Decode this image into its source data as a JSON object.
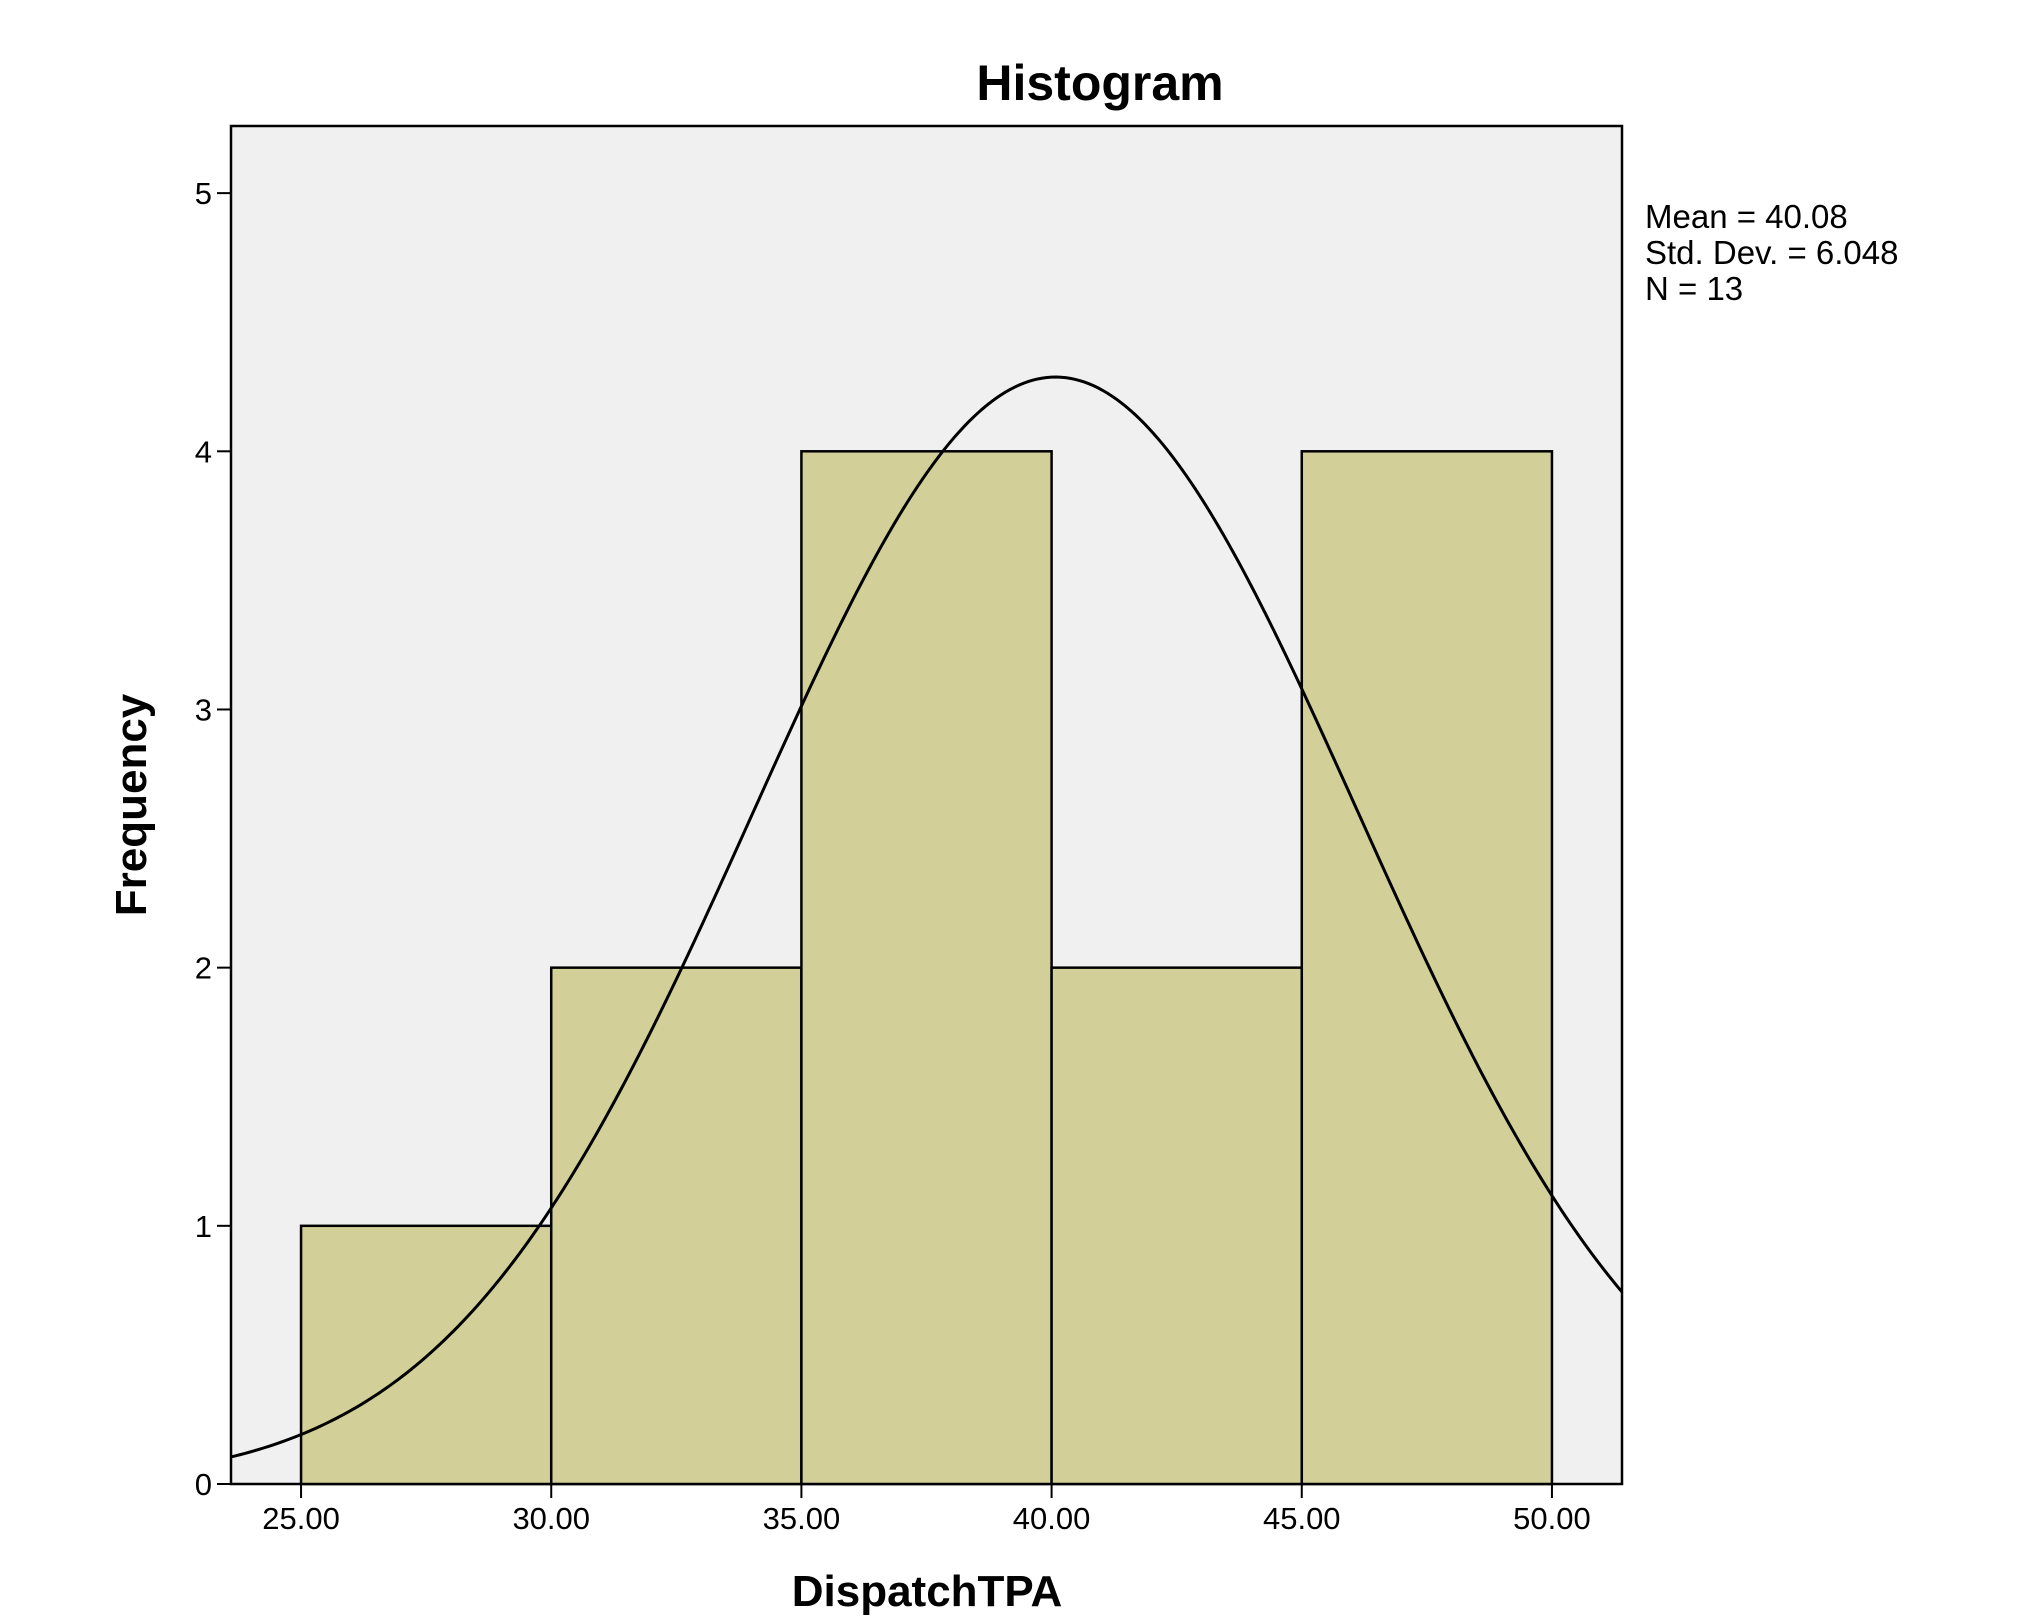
{
  "chart_data": {
    "type": "histogram",
    "title": "Histogram",
    "xlabel": "DispatchTPA",
    "ylabel": "Frequency",
    "xlim": [
      23.6,
      51.4
    ],
    "ylim": [
      0,
      5.26
    ],
    "x_ticks": [
      25,
      30,
      35,
      40,
      45,
      50
    ],
    "x_tick_labels": [
      "25.00",
      "30.00",
      "35.00",
      "40.00",
      "45.00",
      "50.00"
    ],
    "y_ticks": [
      0,
      1,
      2,
      3,
      4,
      5
    ],
    "y_tick_labels": [
      "0",
      "1",
      "2",
      "3",
      "4",
      "5"
    ],
    "bins": [
      {
        "start": 25,
        "end": 30,
        "count": 1
      },
      {
        "start": 30,
        "end": 35,
        "count": 2
      },
      {
        "start": 35,
        "end": 40,
        "count": 4
      },
      {
        "start": 40,
        "end": 45,
        "count": 2
      },
      {
        "start": 45,
        "end": 50,
        "count": 4
      }
    ],
    "normal_curve": {
      "mean": 40.08,
      "std_dev": 6.048,
      "n": 13,
      "bin_width": 5
    },
    "stats": [
      "Mean = 40.08",
      "Std. Dev. = 6.048",
      "N = 13"
    ],
    "colors": {
      "plot_background": "#f0f0f0",
      "bar_fill": "#d3cf98",
      "bar_stroke": "#000000",
      "curve": "#000000"
    },
    "grid": false,
    "legend": "none"
  }
}
